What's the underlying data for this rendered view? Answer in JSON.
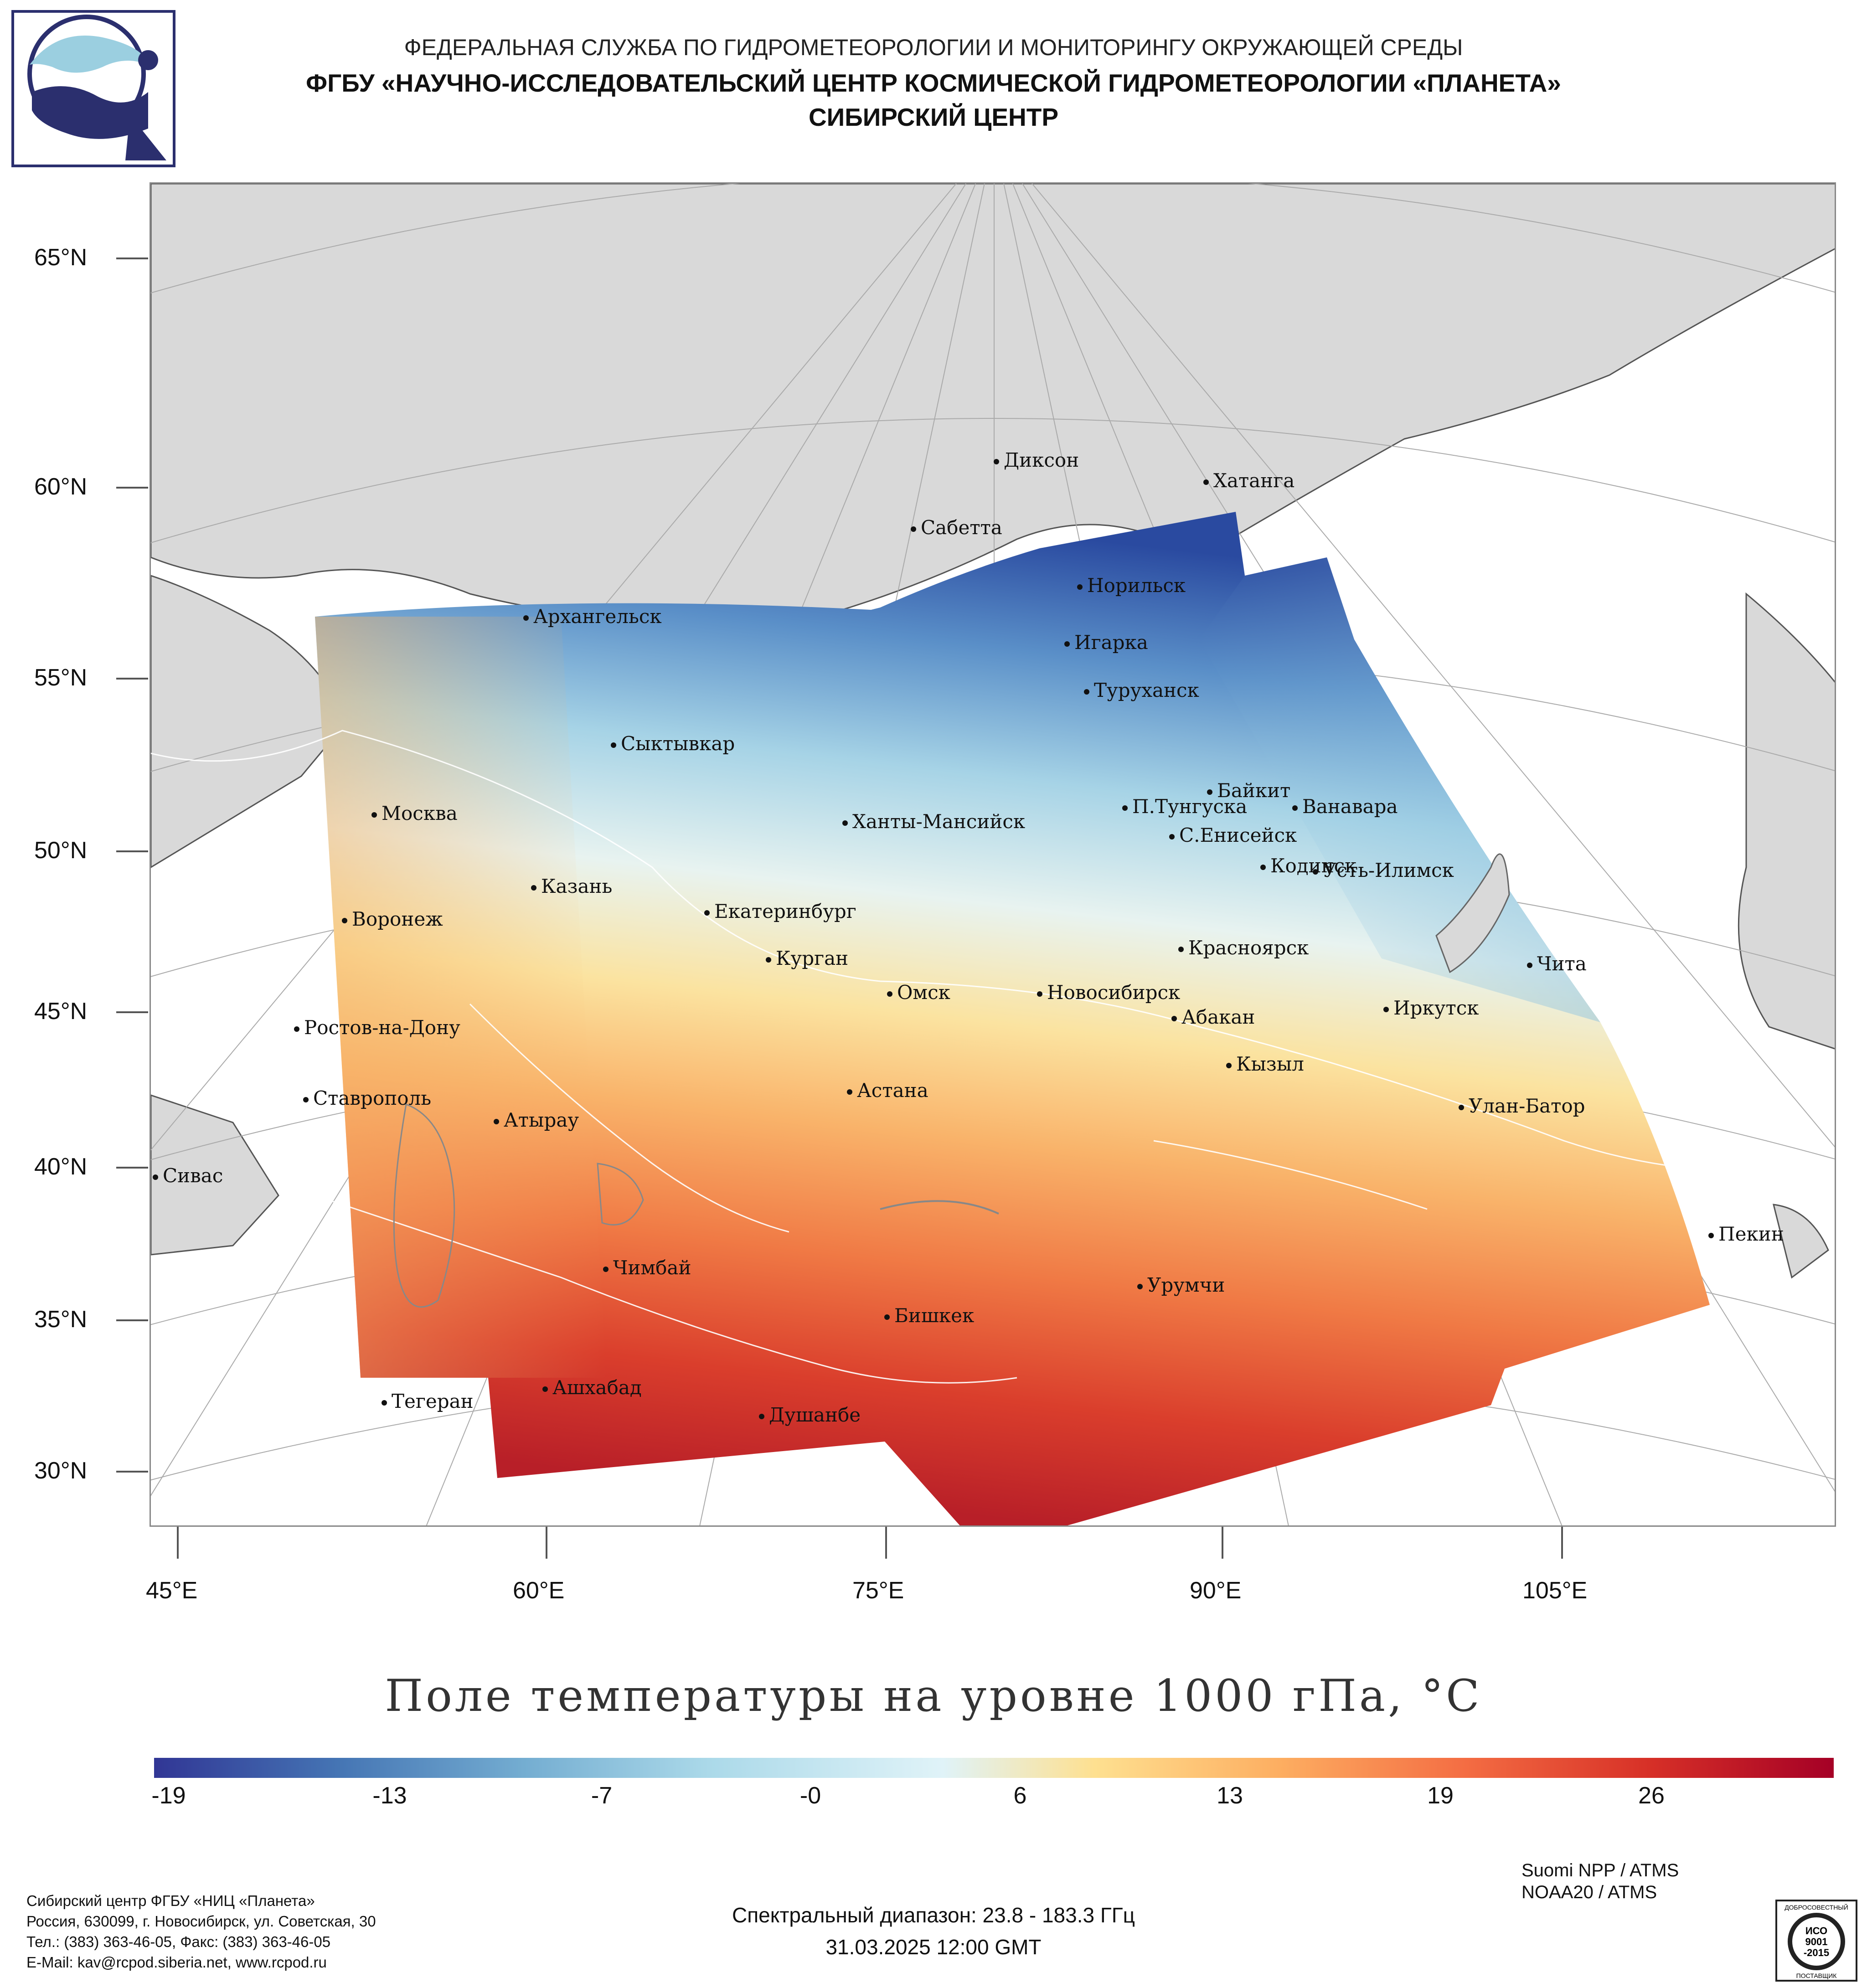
{
  "header": {
    "line1": "ФЕДЕРАЛЬНАЯ СЛУЖБА ПО ГИДРОМЕТЕОРОЛОГИИ И МОНИТОРИНГУ ОКРУЖАЮЩЕЙ СРЕДЫ",
    "line2": "ФГБУ «НАУЧНО-ИССЛЕДОВАТЕЛЬСКИЙ ЦЕНТР КОСМИЧЕСКОЙ ГИДРОМЕТЕОРОЛОГИИ «ПЛАНЕТА»",
    "line3": "СИБИРСКИЙ ЦЕНТР"
  },
  "map": {
    "lat_labels": [
      "65°N",
      "60°N",
      "55°N",
      "50°N",
      "45°N",
      "40°N",
      "35°N",
      "30°N"
    ],
    "lon_labels": [
      "45°E",
      "60°E",
      "75°E",
      "90°E",
      "105°E"
    ],
    "cities": [
      {
        "name": "Диксон"
      },
      {
        "name": "Хатанга"
      },
      {
        "name": "Сабетта"
      },
      {
        "name": "Норильск"
      },
      {
        "name": "Архангельск"
      },
      {
        "name": "Игарка"
      },
      {
        "name": "Туруханск"
      },
      {
        "name": "Сыктывкар"
      },
      {
        "name": "Байкит"
      },
      {
        "name": "П.Тунгуска"
      },
      {
        "name": "Ванавара"
      },
      {
        "name": "Москва"
      },
      {
        "name": "Ханты-Мансийск"
      },
      {
        "name": "С.Енисейск"
      },
      {
        "name": "Кодинск"
      },
      {
        "name": "Усть-Илимск"
      },
      {
        "name": "Казань"
      },
      {
        "name": "Екатеринбург"
      },
      {
        "name": "Воронеж"
      },
      {
        "name": "Красноярск"
      },
      {
        "name": "Курган"
      },
      {
        "name": "Чита"
      },
      {
        "name": "Омск"
      },
      {
        "name": "Новосибирск"
      },
      {
        "name": "Иркутск"
      },
      {
        "name": "Абакан"
      },
      {
        "name": "Ростов-на-Дону"
      },
      {
        "name": "Кызыл"
      },
      {
        "name": "Астана"
      },
      {
        "name": "Ставрополь"
      },
      {
        "name": "Улан-Батор"
      },
      {
        "name": "Атырау"
      },
      {
        "name": "Сивас"
      },
      {
        "name": "Пекин"
      },
      {
        "name": "Чимбай"
      },
      {
        "name": "Урумчи"
      },
      {
        "name": "Бишкек"
      },
      {
        "name": "Ашхабад"
      },
      {
        "name": "Тегеран"
      },
      {
        "name": "Душанбе"
      }
    ],
    "colors": {
      "land": "#d9d9d9",
      "ocean": "#ffffff",
      "grid": "#aaaaaa"
    }
  },
  "title": "Поле температуры на уровне 1000 гПа, °C",
  "colorbar": {
    "labels": [
      "-19",
      "-13",
      "-7",
      "-0",
      "6",
      "13",
      "19",
      "26"
    ],
    "colors": [
      "#313695",
      "#4575b4",
      "#74add1",
      "#abd9e9",
      "#e0f3f8",
      "#fee090",
      "#fdae61",
      "#f46d43",
      "#d73027",
      "#a50026"
    ]
  },
  "footer": {
    "org_lines": [
      "Сибирский центр ФГБУ «НИЦ «Планета»",
      "Россия, 630099, г. Новосибирск, ул. Советская, 30",
      "Тел.: (383) 363-46-05, Факс: (383) 363-46-05",
      "E-Mail: kav@rcpod.siberia.net, www.rcpod.ru"
    ],
    "instruments": [
      "Suomi NPP / ATMS",
      "NOAA20 / ATMS"
    ],
    "spectral": "Спектральный диапазон: 23.8 - 183.3 ГГц",
    "datetime": "31.03.2025 12:00 GMT",
    "iso_text": [
      "ДОБРОСОВЕСТНЫЙ",
      "ИСО",
      "9001",
      "-2015",
      "ПОСТАВЩИК"
    ]
  }
}
